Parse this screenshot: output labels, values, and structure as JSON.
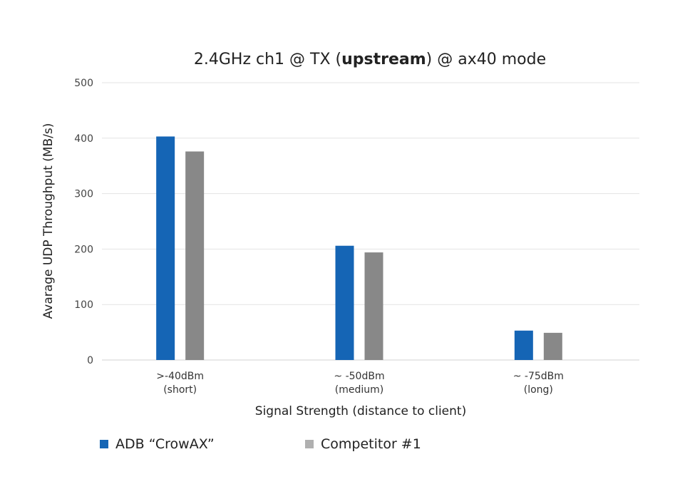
{
  "chart_data": {
    "type": "bar",
    "title": {
      "prefix": "2.4GHz ch1 @ TX (",
      "bold": "upstream",
      "suffix": ") @ ax40 mode"
    },
    "xlabel": "Signal Strength (distance to client)",
    "ylabel": "Avarage UDP Throughput (MB/s)",
    "ylim": [
      0,
      500
    ],
    "yticks": [
      0,
      100,
      200,
      300,
      400,
      500
    ],
    "grid": true,
    "legend_position": "bottom-left",
    "categories": [
      [
        ">-40dBm",
        "(short)"
      ],
      [
        "~ -50dBm",
        "(medium)"
      ],
      [
        "~ -75dBm",
        "(long)"
      ]
    ],
    "series": [
      {
        "name": "ADB “CrowAX”",
        "color": "#1565b5",
        "values": [
          403,
          206,
          53
        ]
      },
      {
        "name": "Competitor #1",
        "color": "#888888",
        "values": [
          376,
          194,
          49
        ]
      }
    ]
  }
}
